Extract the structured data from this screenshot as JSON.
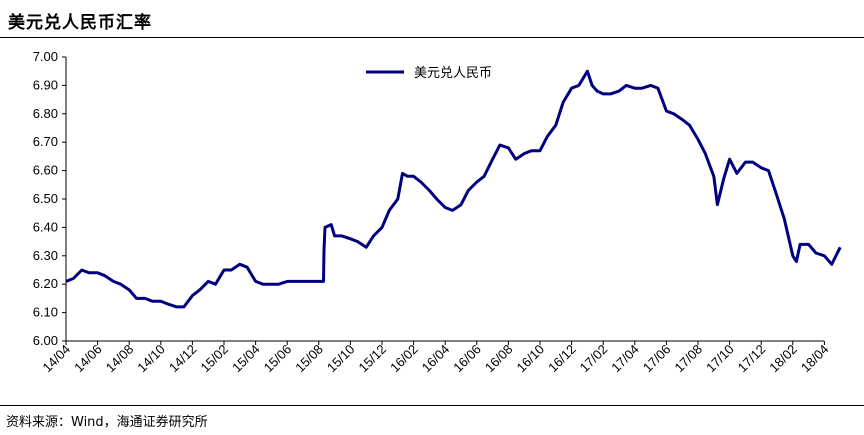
{
  "header": {
    "title": "美元兑人民币汇率"
  },
  "footer": {
    "source": "资料来源：Wind，海通证券研究所"
  },
  "chart_data": {
    "type": "line",
    "title": "美元兑人民币汇率",
    "xlabel": "",
    "ylabel": "",
    "ylim": [
      6.0,
      7.0
    ],
    "yticks": [
      "7.00",
      "6.90",
      "6.80",
      "6.70",
      "6.60",
      "6.50",
      "6.40",
      "6.30",
      "6.20",
      "6.10",
      "6.00"
    ],
    "xticks": [
      "14/04",
      "14/06",
      "14/08",
      "14/10",
      "14/12",
      "15/02",
      "15/04",
      "15/06",
      "15/08",
      "15/10",
      "15/12",
      "16/02",
      "16/04",
      "16/06",
      "16/08",
      "16/10",
      "16/12",
      "17/02",
      "17/04",
      "17/06",
      "17/08",
      "17/10",
      "17/12",
      "18/02",
      "18/04"
    ],
    "legend": {
      "placement": "top-center",
      "entries": [
        "美元兑人民币"
      ]
    },
    "grid": false,
    "series": [
      {
        "name": "美元兑人民币",
        "color": "#000080",
        "points": [
          [
            "2014-04-01",
            6.21
          ],
          [
            "2014-04-15",
            6.22
          ],
          [
            "2014-05-01",
            6.25
          ],
          [
            "2014-05-15",
            6.24
          ],
          [
            "2014-06-01",
            6.24
          ],
          [
            "2014-06-15",
            6.23
          ],
          [
            "2014-07-01",
            6.21
          ],
          [
            "2014-07-15",
            6.2
          ],
          [
            "2014-08-01",
            6.18
          ],
          [
            "2014-08-15",
            6.15
          ],
          [
            "2014-09-01",
            6.15
          ],
          [
            "2014-09-15",
            6.14
          ],
          [
            "2014-10-01",
            6.14
          ],
          [
            "2014-10-15",
            6.13
          ],
          [
            "2014-11-01",
            6.12
          ],
          [
            "2014-11-15",
            6.12
          ],
          [
            "2014-12-01",
            6.16
          ],
          [
            "2014-12-15",
            6.18
          ],
          [
            "2015-01-01",
            6.21
          ],
          [
            "2015-01-15",
            6.2
          ],
          [
            "2015-02-01",
            6.25
          ],
          [
            "2015-02-15",
            6.25
          ],
          [
            "2015-03-01",
            6.27
          ],
          [
            "2015-03-15",
            6.26
          ],
          [
            "2015-04-01",
            6.21
          ],
          [
            "2015-04-15",
            6.2
          ],
          [
            "2015-05-01",
            6.2
          ],
          [
            "2015-05-15",
            6.2
          ],
          [
            "2015-06-01",
            6.21
          ],
          [
            "2015-06-15",
            6.21
          ],
          [
            "2015-07-01",
            6.21
          ],
          [
            "2015-07-15",
            6.21
          ],
          [
            "2015-08-10",
            6.21
          ],
          [
            "2015-08-11",
            6.32
          ],
          [
            "2015-08-13",
            6.4
          ],
          [
            "2015-08-25",
            6.41
          ],
          [
            "2015-09-01",
            6.37
          ],
          [
            "2015-09-15",
            6.37
          ],
          [
            "2015-10-01",
            6.36
          ],
          [
            "2015-10-15",
            6.35
          ],
          [
            "2015-11-01",
            6.33
          ],
          [
            "2015-11-15",
            6.37
          ],
          [
            "2015-12-01",
            6.4
          ],
          [
            "2015-12-15",
            6.46
          ],
          [
            "2016-01-01",
            6.5
          ],
          [
            "2016-01-10",
            6.59
          ],
          [
            "2016-01-20",
            6.58
          ],
          [
            "2016-02-01",
            6.58
          ],
          [
            "2016-02-15",
            6.56
          ],
          [
            "2016-03-01",
            6.53
          ],
          [
            "2016-03-15",
            6.5
          ],
          [
            "2016-04-01",
            6.47
          ],
          [
            "2016-04-15",
            6.46
          ],
          [
            "2016-05-01",
            6.48
          ],
          [
            "2016-05-15",
            6.53
          ],
          [
            "2016-06-01",
            6.56
          ],
          [
            "2016-06-15",
            6.58
          ],
          [
            "2016-07-01",
            6.64
          ],
          [
            "2016-07-15",
            6.69
          ],
          [
            "2016-08-01",
            6.68
          ],
          [
            "2016-08-15",
            6.64
          ],
          [
            "2016-09-01",
            6.66
          ],
          [
            "2016-09-15",
            6.67
          ],
          [
            "2016-10-01",
            6.67
          ],
          [
            "2016-10-15",
            6.72
          ],
          [
            "2016-11-01",
            6.76
          ],
          [
            "2016-11-15",
            6.84
          ],
          [
            "2016-12-01",
            6.89
          ],
          [
            "2016-12-15",
            6.9
          ],
          [
            "2017-01-01",
            6.95
          ],
          [
            "2017-01-10",
            6.9
          ],
          [
            "2017-01-20",
            6.88
          ],
          [
            "2017-02-01",
            6.87
          ],
          [
            "2017-02-15",
            6.87
          ],
          [
            "2017-03-01",
            6.88
          ],
          [
            "2017-03-15",
            6.9
          ],
          [
            "2017-04-01",
            6.89
          ],
          [
            "2017-04-15",
            6.89
          ],
          [
            "2017-05-01",
            6.9
          ],
          [
            "2017-05-15",
            6.89
          ],
          [
            "2017-06-01",
            6.81
          ],
          [
            "2017-06-15",
            6.8
          ],
          [
            "2017-07-01",
            6.78
          ],
          [
            "2017-07-15",
            6.76
          ],
          [
            "2017-08-01",
            6.71
          ],
          [
            "2017-08-15",
            6.66
          ],
          [
            "2017-09-01",
            6.58
          ],
          [
            "2017-09-08",
            6.48
          ],
          [
            "2017-09-20",
            6.57
          ],
          [
            "2017-10-01",
            6.64
          ],
          [
            "2017-10-15",
            6.59
          ],
          [
            "2017-11-01",
            6.63
          ],
          [
            "2017-11-15",
            6.63
          ],
          [
            "2017-12-01",
            6.61
          ],
          [
            "2017-12-15",
            6.6
          ],
          [
            "2018-01-01",
            6.51
          ],
          [
            "2018-01-15",
            6.43
          ],
          [
            "2018-02-01",
            6.3
          ],
          [
            "2018-02-08",
            6.28
          ],
          [
            "2018-02-15",
            6.34
          ],
          [
            "2018-03-01",
            6.34
          ],
          [
            "2018-03-15",
            6.31
          ],
          [
            "2018-04-01",
            6.3
          ],
          [
            "2018-04-15",
            6.27
          ],
          [
            "2018-05-01",
            6.33
          ]
        ]
      }
    ]
  }
}
